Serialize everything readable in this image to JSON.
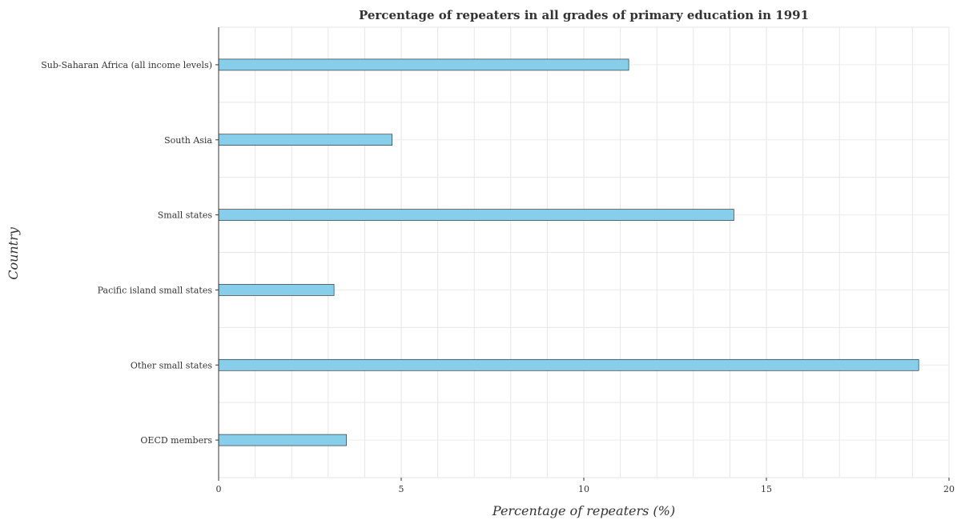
{
  "chart_data": {
    "type": "bar",
    "orientation": "horizontal",
    "title": "Percentage of repeaters in all grades of primary education in 1991",
    "xlabel": "Percentage of repeaters (%)",
    "ylabel": "Country",
    "xlim": [
      0,
      20
    ],
    "xticks": [
      0,
      5,
      10,
      15,
      20
    ],
    "categories": [
      "OECD members",
      "Other small states",
      "Pacific island small states",
      "Small states",
      "South Asia",
      "Sub-Saharan Africa (all income levels)"
    ],
    "values": [
      3.5,
      19.17,
      3.16,
      14.11,
      4.75,
      11.23
    ],
    "grid": true,
    "bar_color": "#87ceeb",
    "bar_edge_color": "#1a1a1a"
  }
}
